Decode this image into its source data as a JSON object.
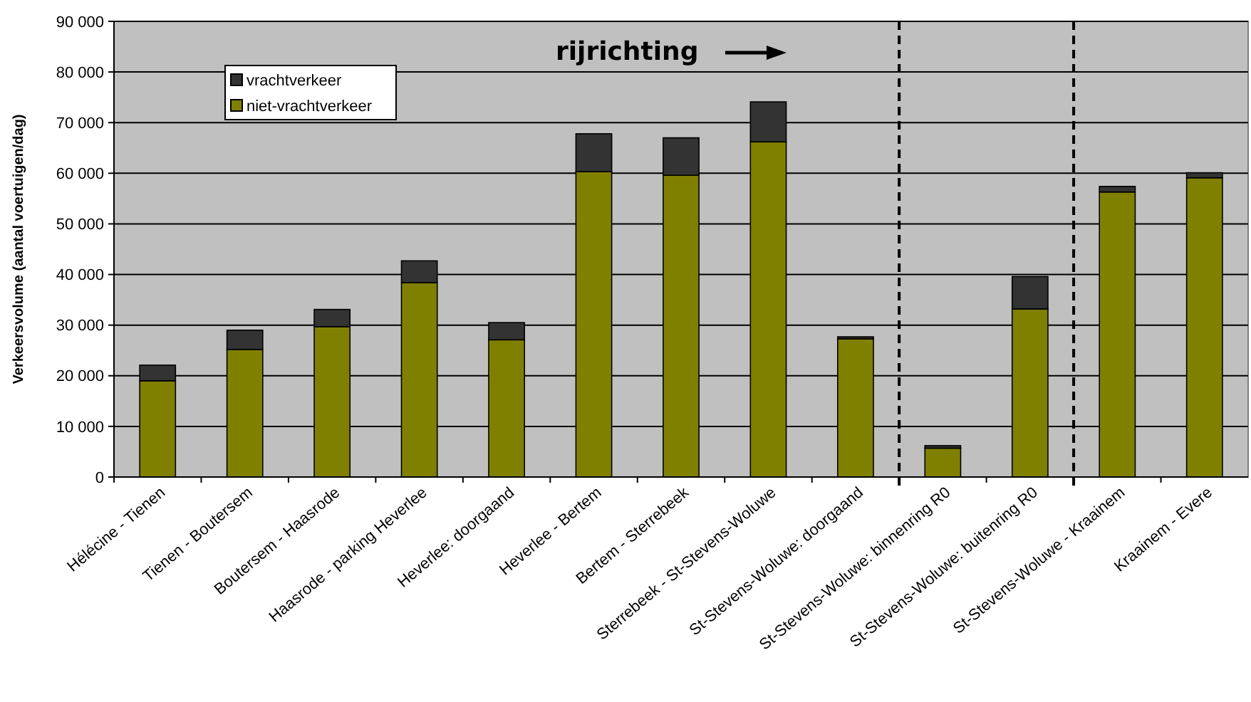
{
  "chart_data": {
    "type": "bar",
    "stacked": true,
    "ylabel": "Verkeersvolume (aantal voertuigen/dag)",
    "categories": [
      "Hélécine - Tienen",
      "Tienen - Boutersem",
      "Boutersem - Haasrode",
      "Haasrode - parking Heverlee",
      "Heverlee: doorgaand",
      "Heverlee - Bertem",
      "Bertem - Sterrebeek",
      "Sterrebeek - St-Stevens-Woluwe",
      "St-Stevens-Woluwe: doorgaand",
      "St-Stevens-Woluwe: binnenring R0",
      "St-Stevens-Woluwe: buitenring R0",
      "St-Stevens-Woluwe - Kraainem",
      "Kraainem - Evere"
    ],
    "series": [
      {
        "name": "niet-vrachtverkeer",
        "color": "#808000",
        "values": [
          19000,
          25200,
          29700,
          38400,
          27100,
          60300,
          59600,
          66200,
          27300,
          5700,
          33200,
          56300,
          59100
        ]
      },
      {
        "name": "vrachtverkeer",
        "color": "#333333",
        "values": [
          3100,
          3800,
          3400,
          4300,
          3400,
          7500,
          7400,
          7900,
          400,
          500,
          6400,
          1100,
          1000
        ]
      }
    ],
    "ylim": [
      0,
      90000
    ],
    "yticks": [
      0,
      {
        "value": 10000,
        "label": "10 000"
      },
      {
        "value": 20000,
        "label": "20 000"
      },
      {
        "value": 30000,
        "label": "30 000"
      },
      {
        "value": 40000,
        "label": "40 000"
      },
      {
        "value": 50000,
        "label": "50 000"
      },
      {
        "value": 60000,
        "label": "60 000"
      },
      {
        "value": 70000,
        "label": "70 000"
      },
      {
        "value": 80000,
        "label": "80 000"
      },
      {
        "value": 90000,
        "label": "90 000"
      }
    ],
    "grid": "y",
    "legend": "top left",
    "annotations": [
      "rijrichting"
    ]
  }
}
